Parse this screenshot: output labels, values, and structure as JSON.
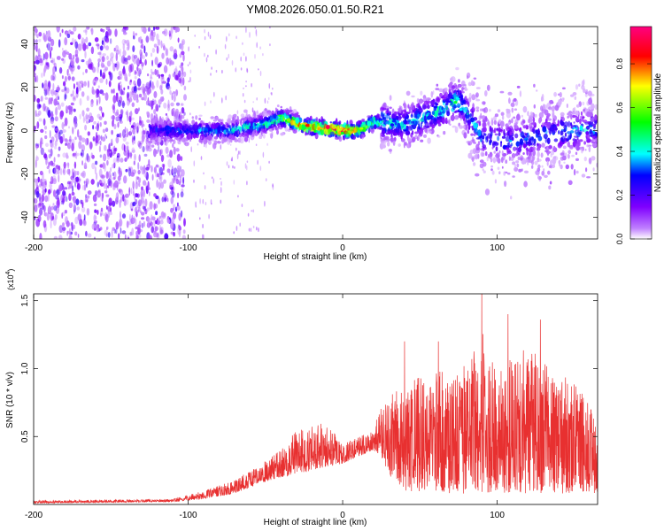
{
  "title": "YM08.2026.050.01.50.R21",
  "chart_data": [
    {
      "type": "heatmap",
      "xlabel": "Height of straight line (km)",
      "ylabel": "Frequency (Hz)",
      "xlim": [
        -200,
        165
      ],
      "ylim": [
        -50,
        48
      ],
      "x_ticks": [
        -200,
        -100,
        0,
        100
      ],
      "y_ticks": [
        -40,
        -20,
        0,
        20,
        40
      ],
      "colorbar": {
        "label": "Normalized spectral amplitude",
        "range": [
          0.0,
          0.97
        ],
        "ticks": [
          "0.0",
          "0.2",
          "0.4",
          "0.6",
          "0.8"
        ],
        "colormap": [
          "#ffffff",
          "#8000ff",
          "#0000ff",
          "#00ffff",
          "#00ff00",
          "#ffff00",
          "#ff0000",
          "#ff0080"
        ]
      },
      "ridge": {
        "x": [
          -125,
          -100,
          -75,
          -50,
          -40,
          -25,
          -10,
          0,
          10,
          20,
          40,
          60,
          75,
          80,
          90,
          110,
          130,
          150,
          165
        ],
        "y": [
          0,
          0,
          0,
          3,
          6,
          2,
          1,
          0,
          0,
          4,
          3,
          8,
          14,
          9,
          -3,
          -5,
          -2,
          0,
          1
        ],
        "peak_amplitude": [
          0.25,
          0.3,
          0.35,
          0.45,
          0.6,
          0.8,
          0.9,
          0.95,
          0.75,
          0.5,
          0.35,
          0.4,
          0.45,
          0.35,
          0.3,
          0.3,
          0.3,
          0.35,
          0.3
        ]
      },
      "noise_region_x": [
        -200,
        -102
      ]
    },
    {
      "type": "line",
      "xlabel": "Height of straight line (km)",
      "ylabel": "SNR (10 * v/v)",
      "y_scale_label": "(x10",
      "y_scale_exponent": "4",
      "y_scale_suffix": ")",
      "xlim": [
        -200,
        165
      ],
      "ylim": [
        0,
        1.55
      ],
      "x_ticks": [
        -200,
        -100,
        0,
        100
      ],
      "y_ticks": [
        "0.5",
        "1.0",
        "1.5"
      ],
      "series_color": "#e83030",
      "envelope": {
        "x": [
          -200,
          -150,
          -110,
          -90,
          -70,
          -55,
          -40,
          -30,
          -20,
          -10,
          0,
          10,
          20,
          25,
          30,
          40,
          60,
          80,
          90,
          100,
          120,
          140,
          150,
          165
        ],
        "baseline": [
          0.01,
          0.015,
          0.02,
          0.04,
          0.08,
          0.15,
          0.2,
          0.22,
          0.25,
          0.28,
          0.3,
          0.35,
          0.4,
          0.35,
          0.2,
          0.1,
          0.08,
          0.08,
          0.08,
          0.08,
          0.08,
          0.08,
          0.08,
          0.08
        ],
        "max": [
          0.03,
          0.035,
          0.04,
          0.1,
          0.18,
          0.28,
          0.4,
          0.55,
          0.6,
          0.6,
          0.45,
          0.5,
          0.55,
          0.95,
          1.0,
          1.1,
          1.2,
          1.25,
          1.55,
          1.3,
          1.4,
          1.2,
          1.1,
          0.8
        ]
      },
      "peaks": [
        {
          "x": 90,
          "y": 1.55
        },
        {
          "x": 107,
          "y": 1.4
        },
        {
          "x": 128,
          "y": 1.36
        },
        {
          "x": 40,
          "y": 1.2
        },
        {
          "x": 62,
          "y": 1.2
        }
      ]
    }
  ]
}
